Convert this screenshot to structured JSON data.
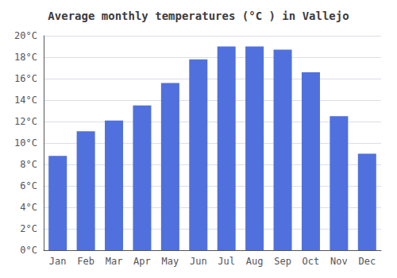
{
  "chart_data": {
    "type": "bar",
    "title": "Average monthly temperatures (°C ) in Vallejo",
    "categories": [
      "Jan",
      "Feb",
      "Mar",
      "Apr",
      "May",
      "Jun",
      "Jul",
      "Aug",
      "Sep",
      "Oct",
      "Nov",
      "Dec"
    ],
    "values": [
      8.8,
      11.1,
      12.1,
      13.5,
      15.6,
      17.8,
      19.0,
      19.0,
      18.7,
      16.6,
      12.5,
      9.0
    ],
    "ylim": [
      0,
      20
    ],
    "yticks": [
      {
        "value": 0,
        "label": "0°C"
      },
      {
        "value": 2,
        "label": "2°C"
      },
      {
        "value": 4,
        "label": "4°C"
      },
      {
        "value": 6,
        "label": "6°C"
      },
      {
        "value": 8,
        "label": "8°C"
      },
      {
        "value": 10,
        "label": "10°C"
      },
      {
        "value": 12,
        "label": "12°C"
      },
      {
        "value": 14,
        "label": "14°C"
      },
      {
        "value": 16,
        "label": "16°C"
      },
      {
        "value": 18,
        "label": "18°C"
      },
      {
        "value": 20,
        "label": "20°C"
      }
    ],
    "grid": true
  }
}
